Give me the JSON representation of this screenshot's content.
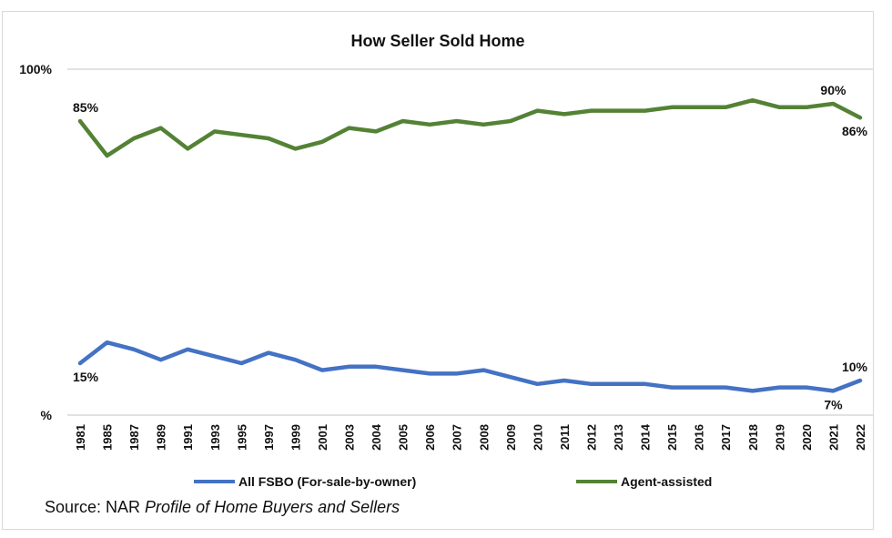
{
  "chart_data": {
    "type": "line",
    "title": "How Seller Sold Home",
    "xlabel": "",
    "ylabel": "",
    "ylim": [
      0,
      100
    ],
    "y_tick_labels": [
      "%",
      "100%"
    ],
    "grid": true,
    "legend_position": "bottom",
    "categories": [
      "1981",
      "1985",
      "1987",
      "1989",
      "1991",
      "1993",
      "1995",
      "1997",
      "1999",
      "2001",
      "2003",
      "2004",
      "2005",
      "2006",
      "2007",
      "2008",
      "2009",
      "2010",
      "2011",
      "2012",
      "2013",
      "2014",
      "2015",
      "2016",
      "2017",
      "2018",
      "2019",
      "2020",
      "2021",
      "2022"
    ],
    "series": [
      {
        "name": "All FSBO (For-sale-by-owner)",
        "color": "#4472c4",
        "values": [
          15,
          21,
          19,
          16,
          19,
          17,
          15,
          18,
          16,
          13,
          14,
          14,
          13,
          12,
          12,
          13,
          11,
          9,
          10,
          9,
          9,
          9,
          8,
          8,
          8,
          7,
          8,
          8,
          7,
          10
        ],
        "annotations": [
          {
            "category": "1981",
            "label": "15%",
            "position": "below"
          },
          {
            "category": "2021",
            "label": "7%",
            "position": "below"
          },
          {
            "category": "2022",
            "label": "10%",
            "position": "above"
          }
        ]
      },
      {
        "name": "Agent-assisted",
        "color": "#548235",
        "values": [
          85,
          75,
          80,
          83,
          77,
          82,
          81,
          80,
          77,
          79,
          83,
          82,
          85,
          84,
          85,
          84,
          85,
          88,
          87,
          88,
          88,
          88,
          89,
          89,
          89,
          91,
          89,
          89,
          90,
          86
        ],
        "annotations": [
          {
            "category": "1981",
            "label": "85%",
            "position": "above"
          },
          {
            "category": "2021",
            "label": "90%",
            "position": "above"
          },
          {
            "category": "2022",
            "label": "86%",
            "position": "below"
          }
        ]
      }
    ]
  },
  "source": {
    "prefix": "Source: NAR ",
    "italic": "Profile of Home Buyers and Sellers"
  }
}
